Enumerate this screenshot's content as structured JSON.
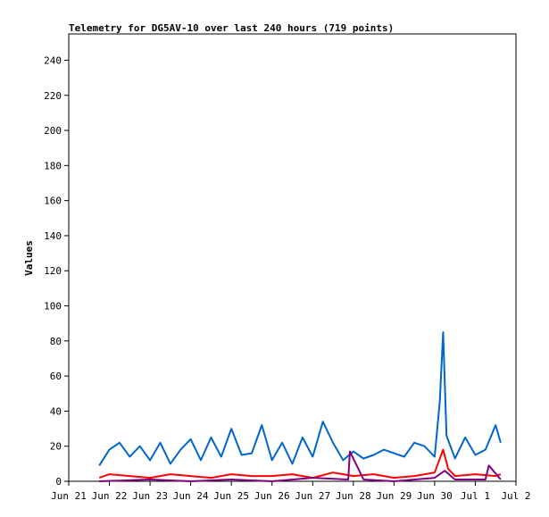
{
  "chart_data": {
    "type": "line",
    "title": "Telemetry for DG5AV-10 over last 240 hours (719 points)",
    "xlabel": "",
    "ylabel": "Values",
    "ylim": [
      0,
      255
    ],
    "yticks": [
      0,
      20,
      40,
      60,
      80,
      100,
      120,
      140,
      160,
      180,
      200,
      220,
      240
    ],
    "xlim": [
      "2024-06-21",
      "2024-07-02"
    ],
    "xticks": [
      "Jun 21",
      "Jun 22",
      "Jun 23",
      "Jun 24",
      "Jun 25",
      "Jun 26",
      "Jun 27",
      "Jun 28",
      "Jun 29",
      "Jun 30",
      "Jul 1",
      "Jul 2"
    ],
    "grid": false,
    "legend": "none",
    "series": [
      {
        "color": "#0066cc",
        "x": [
          "2024-06-21T18:00",
          "2024-06-22T00:00",
          "2024-06-22T06:00",
          "2024-06-22T12:00",
          "2024-06-22T18:00",
          "2024-06-23T00:00",
          "2024-06-23T06:00",
          "2024-06-23T12:00",
          "2024-06-23T18:00",
          "2024-06-24T00:00",
          "2024-06-24T06:00",
          "2024-06-24T12:00",
          "2024-06-24T18:00",
          "2024-06-25T00:00",
          "2024-06-25T06:00",
          "2024-06-25T12:00",
          "2024-06-25T18:00",
          "2024-06-26T00:00",
          "2024-06-26T06:00",
          "2024-06-26T12:00",
          "2024-06-26T18:00",
          "2024-06-27T00:00",
          "2024-06-27T06:00",
          "2024-06-27T12:00",
          "2024-06-27T18:00",
          "2024-06-28T00:00",
          "2024-06-28T06:00",
          "2024-06-28T12:00",
          "2024-06-28T18:00",
          "2024-06-29T00:00",
          "2024-06-29T06:00",
          "2024-06-29T12:00",
          "2024-06-29T18:00",
          "2024-06-30T00:00",
          "2024-06-30T03:00",
          "2024-06-30T05:00",
          "2024-06-30T07:00",
          "2024-06-30T12:00",
          "2024-06-30T18:00",
          "2024-07-01T00:00",
          "2024-07-01T06:00",
          "2024-07-01T12:00",
          "2024-07-01T15:00"
        ],
        "y": [
          9,
          18,
          22,
          14,
          20,
          12,
          22,
          10,
          18,
          24,
          12,
          25,
          14,
          30,
          15,
          16,
          32,
          12,
          22,
          10,
          25,
          14,
          34,
          22,
          12,
          17,
          13,
          15,
          18,
          16,
          14,
          22,
          20,
          14,
          45,
          85,
          26,
          13,
          25,
          15,
          18,
          32,
          22
        ]
      },
      {
        "color": "#ff0000",
        "x": [
          "2024-06-21T18:00",
          "2024-06-22T00:00",
          "2024-06-22T12:00",
          "2024-06-23T00:00",
          "2024-06-23T12:00",
          "2024-06-24T00:00",
          "2024-06-24T12:00",
          "2024-06-25T00:00",
          "2024-06-25T12:00",
          "2024-06-26T00:00",
          "2024-06-26T12:00",
          "2024-06-27T00:00",
          "2024-06-27T12:00",
          "2024-06-28T00:00",
          "2024-06-28T12:00",
          "2024-06-29T00:00",
          "2024-06-29T12:00",
          "2024-06-30T00:00",
          "2024-06-30T05:00",
          "2024-06-30T08:00",
          "2024-06-30T12:00",
          "2024-07-01T00:00",
          "2024-07-01T12:00",
          "2024-07-01T15:00"
        ],
        "y": [
          2,
          4,
          3,
          2,
          4,
          3,
          2,
          4,
          3,
          3,
          4,
          2,
          5,
          3,
          4,
          2,
          3,
          5,
          18,
          7,
          3,
          4,
          3,
          4
        ]
      },
      {
        "color": "#800080",
        "x": [
          "2024-06-21T18:00",
          "2024-06-23T00:00",
          "2024-06-24T00:00",
          "2024-06-25T00:00",
          "2024-06-26T00:00",
          "2024-06-27T00:00",
          "2024-06-27T21:00",
          "2024-06-27T22:00",
          "2024-06-28T06:00",
          "2024-06-29T00:00",
          "2024-06-30T00:00",
          "2024-06-30T06:00",
          "2024-06-30T12:00",
          "2024-07-01T00:00",
          "2024-07-01T06:00",
          "2024-07-01T08:00",
          "2024-07-01T15:00"
        ],
        "y": [
          0,
          1,
          0,
          1,
          0,
          2,
          1,
          17,
          1,
          0,
          2,
          6,
          1,
          1,
          1,
          9,
          1
        ]
      }
    ]
  }
}
